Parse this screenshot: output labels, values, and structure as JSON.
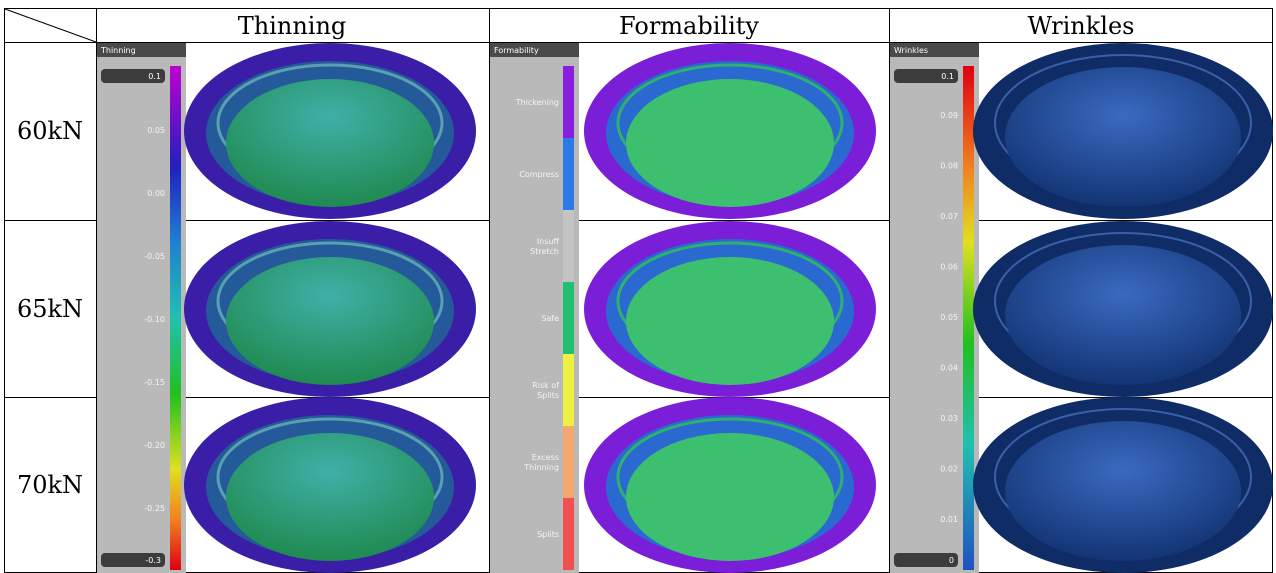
{
  "table": {
    "corner": "",
    "columns": [
      "Thinning",
      "Formability",
      "Wrinkles"
    ],
    "rows": [
      "60kN",
      "65kN",
      "70kN"
    ]
  },
  "legends": {
    "thinning": {
      "title": "Thinning",
      "top": "0.1",
      "bottom": "-0.3",
      "labels": [
        "0.05",
        "0.00",
        "-0.05",
        "-0.10",
        "-0.15",
        "-0.20",
        "-0.25"
      ]
    },
    "formability": {
      "title": "Formability",
      "labels": [
        [
          "Thickening"
        ],
        [
          "Compress"
        ],
        [
          "Insuff",
          "Stretch"
        ],
        [
          "Safe"
        ],
        [
          "Risk of",
          "Splits"
        ],
        [
          "Excess",
          "Thinning"
        ],
        [
          "Splits"
        ]
      ]
    },
    "wrinkles": {
      "title": "Wrinkles",
      "top": "0.1",
      "bottom": "0",
      "labels": [
        "0.09",
        "0.08",
        "0.07",
        "0.06",
        "0.05",
        "0.04",
        "0.03",
        "0.02",
        "0.01"
      ]
    }
  }
}
